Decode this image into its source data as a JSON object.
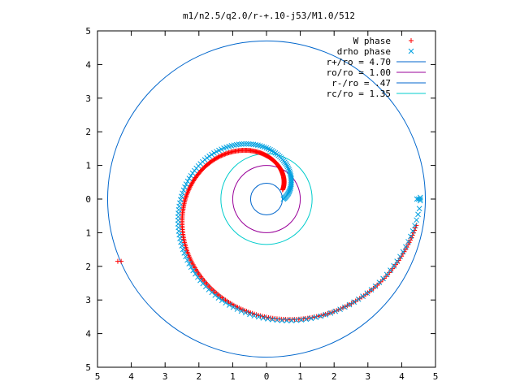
{
  "chart_data": {
    "type": "scatter",
    "title": "m1/n2.5/q2.0/r-+.10-j53/M1.0/512",
    "xlabel": "",
    "ylabel": "",
    "xlim": [
      -5,
      5
    ],
    "ylim": [
      -5,
      5
    ],
    "grid": false,
    "legend_position": "top-right",
    "x_ticks": [
      "5",
      "4",
      "3",
      "2",
      "1",
      "0",
      "1",
      "2",
      "3",
      "4",
      "5"
    ],
    "y_ticks": [
      "5",
      "4",
      "3",
      "2",
      "1",
      "0",
      "1",
      "2",
      "3",
      "4",
      "5"
    ],
    "series": [
      {
        "name": "W phase",
        "kind": "points",
        "marker": "+",
        "color": "#ff0000",
        "spiral": {
          "r_start": 0.55,
          "r_end": 4.5,
          "theta_start": 30,
          "theta_end": 350,
          "dtheta": 1
        },
        "extra_points": [
          [
            -4.3,
            -1.85
          ],
          [
            -4.4,
            -1.85
          ]
        ]
      },
      {
        "name": "drho phase",
        "kind": "points",
        "marker": "x",
        "color": "#00a0e0",
        "spiral": {
          "r_start": 0.5,
          "r_end": 4.55,
          "theta_start": 0,
          "theta_end": 358,
          "dtheta": 2.2
        },
        "extra_points": [
          [
            4.55,
            0.0
          ],
          [
            4.5,
            0.0
          ],
          [
            4.45,
            0.0
          ],
          [
            4.55,
            0.05
          ],
          [
            4.55,
            -0.05
          ]
        ]
      },
      {
        "name": "r+/ro = 4.70",
        "kind": "circle",
        "radius": 4.7,
        "color": "#0066cc"
      },
      {
        "name": "ro/ro = 1.00",
        "kind": "circle",
        "radius": 1.0,
        "color": "#990099"
      },
      {
        "name": "r-/ro = .47",
        "kind": "circle",
        "radius": 0.47,
        "color": "#0066cc"
      },
      {
        "name": "rc/ro = 1.35",
        "kind": "circle",
        "radius": 1.35,
        "color": "#00cccc"
      }
    ]
  }
}
